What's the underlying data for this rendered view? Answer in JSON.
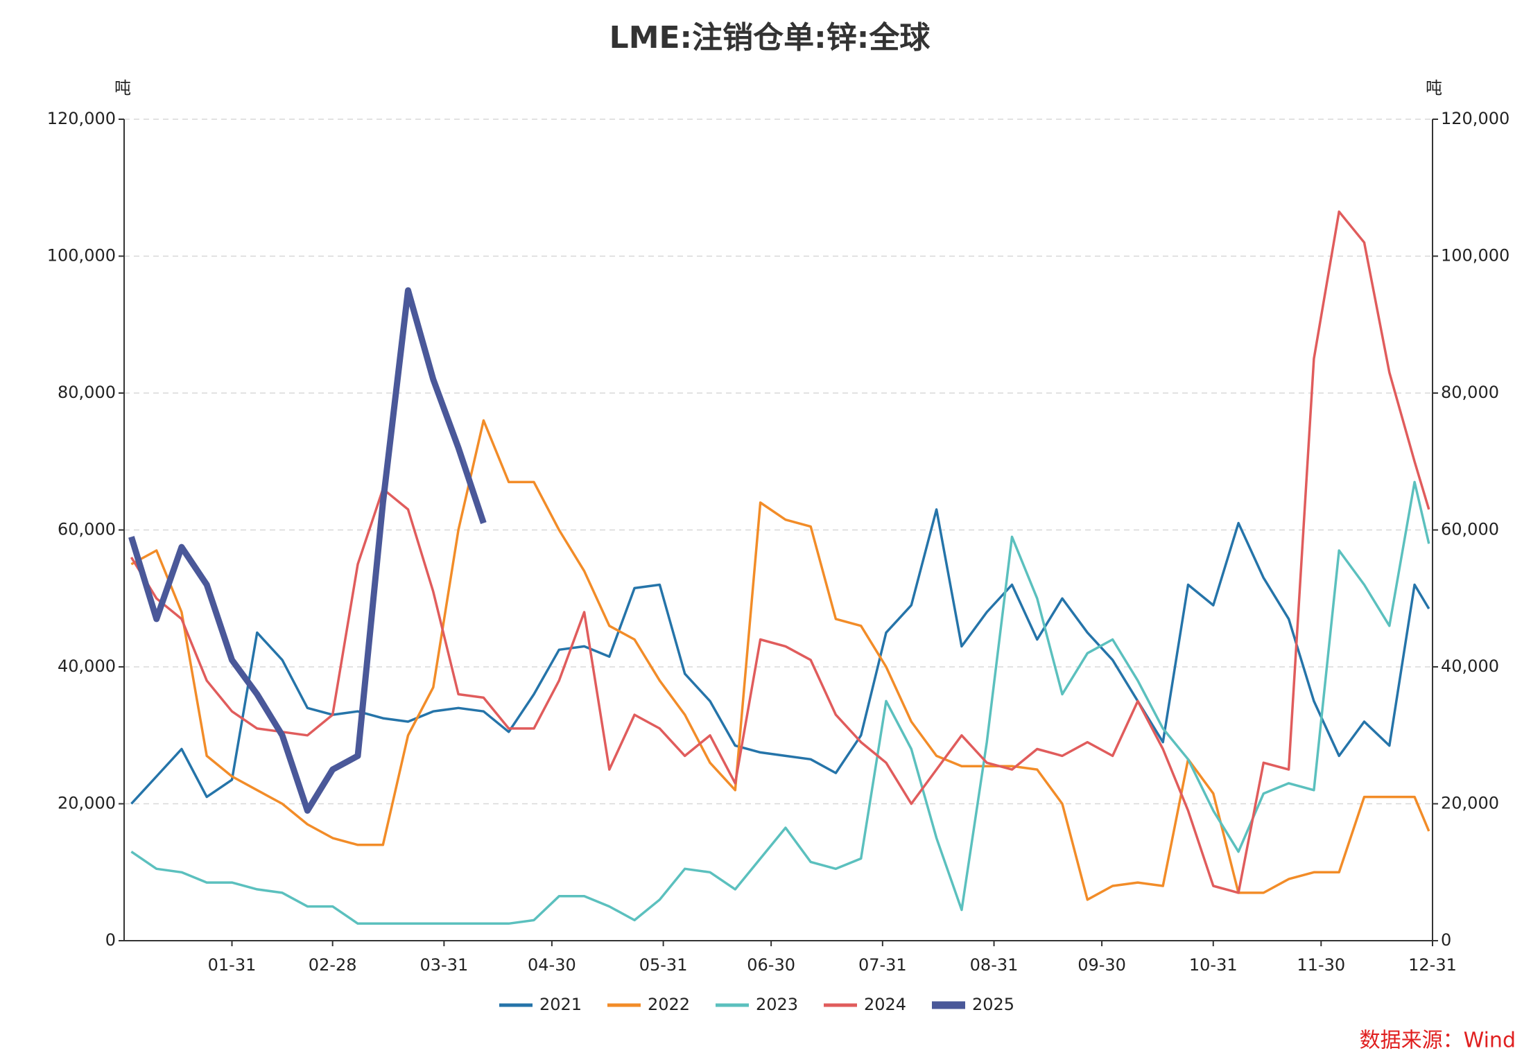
{
  "chart_data": {
    "type": "line",
    "title": "LME:注销仓单:锌:全球",
    "y_label": "吨",
    "y2_label": "吨",
    "source": "数据来源：Wind",
    "x": [
      "01-03",
      "01-10",
      "01-17",
      "01-24",
      "01-31",
      "02-07",
      "02-14",
      "02-21",
      "02-28",
      "03-07",
      "03-14",
      "03-21",
      "03-28",
      "04-04",
      "04-11",
      "04-18",
      "04-25",
      "05-02",
      "05-09",
      "05-16",
      "05-23",
      "05-30",
      "06-06",
      "06-13",
      "06-20",
      "06-27",
      "07-04",
      "07-11",
      "07-18",
      "07-25",
      "08-01",
      "08-08",
      "08-15",
      "08-22",
      "08-29",
      "09-05",
      "09-12",
      "09-19",
      "09-26",
      "10-03",
      "10-10",
      "10-17",
      "10-24",
      "10-31",
      "11-07",
      "11-14",
      "11-21",
      "11-28",
      "12-05",
      "12-12",
      "12-19",
      "12-26",
      "12-30"
    ],
    "xlim": [
      "01-01",
      "12-31"
    ],
    "xticks": [
      "01-31",
      "02-28",
      "03-31",
      "04-30",
      "05-31",
      "06-30",
      "07-31",
      "08-31",
      "09-30",
      "10-31",
      "11-30",
      "12-31"
    ],
    "ylim": [
      0,
      120000
    ],
    "yticks": [
      0,
      {
        "value": 20000,
        "label": "20,000"
      },
      {
        "value": 40000,
        "label": "40,000"
      },
      {
        "value": 60000,
        "label": "60,000"
      },
      {
        "value": 80000,
        "label": "80,000"
      },
      {
        "value": 100000,
        "label": "100,000"
      },
      {
        "value": 120000,
        "label": "120,000"
      }
    ],
    "y2lim": [
      0,
      120000
    ],
    "y2ticks": [
      0,
      {
        "value": 20000,
        "label": "20,000"
      },
      {
        "value": 40000,
        "label": "40,000"
      },
      {
        "value": 60000,
        "label": "60,000"
      },
      {
        "value": 80000,
        "label": "80,000"
      },
      {
        "value": 100000,
        "label": "100,000"
      },
      {
        "value": 120000,
        "label": "120,000"
      }
    ],
    "grid": true,
    "legend": "bottom",
    "series": [
      {
        "name": "2021",
        "color": "#2574a9",
        "width": 3.5,
        "values": [
          20000,
          24000,
          28000,
          21000,
          23500,
          45000,
          41000,
          34000,
          33000,
          33500,
          32500,
          32000,
          33500,
          34000,
          33500,
          30500,
          36000,
          42500,
          43000,
          41500,
          51500,
          52000,
          39000,
          35000,
          28500,
          27500,
          27000,
          26500,
          24500,
          30000,
          45000,
          49000,
          63000,
          43000,
          48000,
          52000,
          44000,
          50000,
          45000,
          41000,
          35000,
          29000,
          52000,
          49000,
          61000,
          53000,
          47000,
          35000,
          27000,
          32000,
          28500,
          52000,
          48500
        ]
      },
      {
        "name": "2022",
        "color": "#f28c28",
        "width": 3.5,
        "values": [
          55000,
          57000,
          48000,
          27000,
          24000,
          22000,
          20000,
          17000,
          15000,
          14000,
          14000,
          30000,
          37000,
          60000,
          76000,
          67000,
          67000,
          60000,
          54000,
          46000,
          44000,
          38000,
          33000,
          26000,
          22000,
          64000,
          61500,
          60500,
          47000,
          46000,
          40000,
          32000,
          27000,
          25500,
          25500,
          25500,
          25000,
          20000,
          6000,
          8000,
          8500,
          8000,
          26500,
          21500,
          7000,
          7000,
          9000,
          10000,
          10000,
          21000,
          21000,
          21000,
          16000
        ]
      },
      {
        "name": "2023",
        "color": "#5bc0be",
        "width": 3.5,
        "values": [
          13000,
          10500,
          10000,
          8500,
          8500,
          7500,
          7000,
          5000,
          5000,
          2500,
          2500,
          2500,
          2500,
          2500,
          2500,
          2500,
          3000,
          6500,
          6500,
          5000,
          3000,
          6000,
          10500,
          10000,
          7500,
          12000,
          16500,
          11500,
          10500,
          12000,
          35000,
          28000,
          15000,
          4500,
          29000,
          59000,
          50000,
          36000,
          42000,
          44000,
          38000,
          31000,
          26500,
          19000,
          13000,
          21500,
          23000,
          22000,
          57000,
          52000,
          46000,
          67000,
          58000
        ]
      },
      {
        "name": "2024",
        "color": "#e05c5c",
        "width": 3.5,
        "values": [
          56000,
          50000,
          47000,
          38000,
          33500,
          31000,
          30500,
          30000,
          33000,
          55000,
          66000,
          63000,
          51000,
          36000,
          35500,
          31000,
          31000,
          38000,
          48000,
          25000,
          33000,
          31000,
          27000,
          30000,
          23000,
          44000,
          43000,
          41000,
          33000,
          29000,
          26000,
          20000,
          25000,
          30000,
          26000,
          25000,
          28000,
          27000,
          29000,
          27000,
          35000,
          28000,
          19000,
          8000,
          7000,
          26000,
          25000,
          85000,
          106500,
          102000,
          83000,
          70000,
          63000
        ]
      },
      {
        "name": "2025",
        "color": "#4a5899",
        "width": 9,
        "values": [
          59000,
          47000,
          57500,
          52000,
          41000,
          36000,
          30000,
          19000,
          25000,
          27000,
          64000,
          95000,
          82000,
          72000,
          61000,
          null,
          null,
          null,
          null,
          null,
          null,
          null,
          null,
          null,
          null,
          null,
          null,
          null,
          null,
          null,
          null,
          null,
          null,
          null,
          null,
          null,
          null,
          null,
          null,
          null,
          null,
          null,
          null,
          null,
          null,
          null,
          null,
          null,
          null,
          null,
          null,
          null,
          null
        ]
      }
    ]
  }
}
